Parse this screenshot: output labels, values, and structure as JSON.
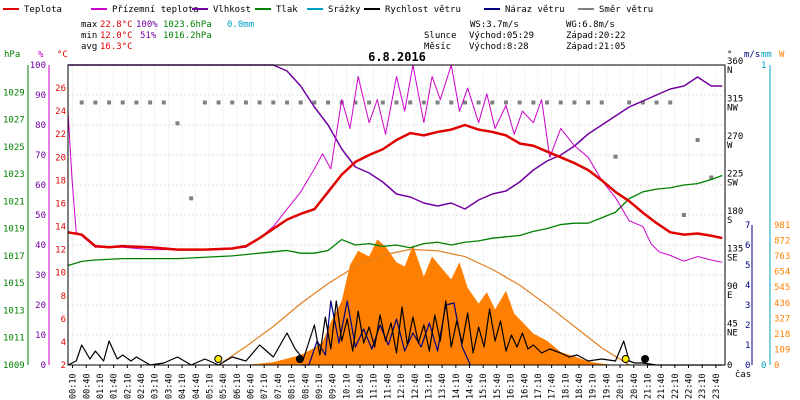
{
  "colors": {
    "temperature": "#e00000",
    "dew_point": "#cc00cc",
    "humidity": "#7000a0",
    "pressure": "#008000",
    "rain": "#00a0c0",
    "wind_speed": "#000000",
    "wind_gust": "#000080",
    "wind_dir": "#808080",
    "solar": "#ff8000",
    "solar_curve": "#e08020",
    "sun_marker": "#ffee00"
  },
  "legend": [
    {
      "key": "temperature",
      "label": "Teplota"
    },
    {
      "key": "dew_point",
      "label": "Přízemní teplota"
    },
    {
      "key": "humidity",
      "label": "Vlhkost"
    },
    {
      "key": "pressure",
      "label": "Tlak"
    },
    {
      "key": "rain",
      "label": "Srážky"
    },
    {
      "key": "wind_speed",
      "label": "Rychlost větru"
    },
    {
      "key": "wind_gust",
      "label": "Náraz větru"
    },
    {
      "key": "wind_dir",
      "label": "Směr větru"
    }
  ],
  "stats": {
    "max_label": "max",
    "max_temp": "22.8°C",
    "max_hum": "100%",
    "max_press": "1023.6hPa",
    "rain_total": "0.0mm",
    "min_label": "min",
    "min_temp": "12.0°C",
    "min_hum": "51%",
    "min_press": "1016.2hPa",
    "avg_label": "avg",
    "avg_temp": "16.3°C"
  },
  "wind_info": {
    "ws": "WS:3.7m/s",
    "wg": "WG:6.8m/s",
    "sun_label": "Slunce",
    "sunrise": "Východ:05:29",
    "sunset": "Západ:20:22",
    "moon_label": "Měsíc",
    "moonrise": "Východ:8:28",
    "moonset": "Západ:21:05"
  },
  "axis_headers": {
    "hpa": "hPa",
    "percent": "%",
    "celsius": "°C",
    "degree": "°",
    "ms": "m/s",
    "mm": "mm",
    "watt": "W"
  },
  "chart_data": {
    "type": "line",
    "title": "6.8.2016",
    "xlabel": "čas",
    "x_ticks": [
      "00:10",
      "00:40",
      "01:10",
      "01:40",
      "02:10",
      "02:40",
      "03:10",
      "03:40",
      "04:10",
      "04:40",
      "05:10",
      "05:40",
      "06:10",
      "06:40",
      "07:10",
      "07:40",
      "08:10",
      "08:40",
      "09:10",
      "09:40",
      "10:10",
      "10:40",
      "11:10",
      "11:40",
      "12:10",
      "12:40",
      "13:10",
      "13:40",
      "14:10",
      "14:40",
      "15:10",
      "15:40",
      "16:10",
      "16:40",
      "17:10",
      "17:40",
      "18:10",
      "18:40",
      "19:10",
      "19:40",
      "20:10",
      "20:40",
      "21:10",
      "21:40",
      "22:10",
      "22:40",
      "23:10",
      "23:40"
    ],
    "axes": {
      "pressure_hpa": {
        "range": [
          1009,
          1031
        ],
        "ticks": [
          1009,
          1011,
          1013,
          1015,
          1017,
          1019,
          1021,
          1023,
          1025,
          1027,
          1029
        ]
      },
      "humidity_percent": {
        "range": [
          0,
          100
        ],
        "ticks": [
          0,
          10,
          20,
          30,
          40,
          50,
          60,
          70,
          80,
          90,
          100
        ]
      },
      "temperature_c": {
        "range": [
          2,
          28
        ],
        "ticks": [
          2,
          4,
          6,
          8,
          10,
          12,
          14,
          16,
          18,
          20,
          22,
          24,
          26
        ]
      },
      "wind_dir_deg": {
        "ticks": [
          "0",
          "45 NE",
          "90 E",
          "135 SE",
          "180 S",
          "225 SW",
          "270 W",
          "315 NW",
          "360 N"
        ]
      },
      "wind_ms": {
        "range": [
          0,
          7
        ],
        "ticks": [
          0,
          1,
          2,
          3,
          4,
          5,
          6,
          7
        ]
      },
      "rain_mm": {
        "range": [
          0,
          1
        ],
        "ticks": [
          0,
          1
        ]
      },
      "solar_w": {
        "range": [
          0,
          981
        ],
        "ticks": [
          0,
          109,
          218,
          327,
          436,
          545,
          654,
          763,
          872,
          981
        ]
      }
    },
    "series": [
      {
        "name": "Teplota",
        "axis": "temperature_c",
        "x": [
          0,
          0.5,
          1,
          1.5,
          2,
          3,
          4,
          5,
          6,
          6.5,
          7,
          7.5,
          8,
          8.5,
          9,
          9.5,
          10,
          10.5,
          11,
          11.5,
          12,
          12.5,
          13,
          13.5,
          14,
          14.5,
          15,
          15.5,
          16,
          16.5,
          17,
          17.5,
          18,
          18.5,
          19,
          19.5,
          20,
          20.5,
          21,
          21.5,
          22,
          22.5,
          23,
          23.5,
          23.9
        ],
        "y": [
          13.5,
          13.3,
          12.3,
          12.2,
          12.3,
          12.2,
          12.0,
          12.0,
          12.1,
          12.3,
          13.0,
          13.8,
          14.6,
          15.1,
          15.5,
          17.0,
          18.5,
          19.6,
          20.2,
          20.7,
          21.5,
          22.1,
          21.9,
          22.2,
          22.4,
          22.8,
          22.4,
          22.2,
          21.9,
          21.2,
          21.0,
          20.5,
          20.0,
          19.5,
          18.9,
          18.0,
          17.0,
          16.2,
          15.2,
          14.3,
          13.5,
          13.3,
          13.4,
          13.2,
          13.0
        ]
      },
      {
        "name": "Přízemní teplota",
        "axis": "temperature_c",
        "x": [
          0,
          0.15,
          0.3,
          0.5,
          1,
          2,
          3,
          4,
          5,
          6,
          6.5,
          7,
          7.5,
          8,
          8.5,
          9,
          9.3,
          9.6,
          10,
          10.3,
          10.6,
          11,
          11.3,
          11.6,
          12,
          12.3,
          12.6,
          13,
          13.3,
          13.6,
          14,
          14.3,
          14.6,
          15,
          15.3,
          15.6,
          16,
          16.3,
          16.6,
          17,
          17.3,
          17.6,
          18,
          18.5,
          19,
          19.5,
          20,
          20.5,
          21,
          21.3,
          21.6,
          22,
          22.5,
          23,
          23.5,
          23.9
        ],
        "y": [
          24,
          18,
          13.5,
          13.2,
          12.2,
          12.2,
          12.0,
          12.0,
          12.0,
          12.1,
          12.2,
          13.0,
          14.0,
          15.5,
          17.0,
          19.0,
          20.3,
          19.0,
          25.0,
          22.5,
          27.0,
          23.0,
          25.0,
          22.0,
          27.0,
          24.0,
          28.0,
          23.0,
          27.0,
          25.0,
          28.0,
          24.0,
          26.0,
          23.0,
          25.5,
          22.5,
          24.5,
          22.0,
          24.0,
          23.0,
          25.0,
          20.0,
          22.5,
          21.0,
          20.0,
          18.0,
          16.5,
          14.5,
          14.0,
          12.5,
          11.8,
          11.5,
          11.0,
          11.4,
          11.1,
          10.9
        ]
      },
      {
        "name": "Vlhkost",
        "axis": "humidity_percent",
        "x": [
          0,
          1,
          2,
          3,
          4,
          5,
          6,
          7,
          7.5,
          8,
          8.5,
          9,
          9.5,
          10,
          10.5,
          11,
          11.5,
          12,
          12.5,
          13,
          13.5,
          14,
          14.5,
          15,
          15.5,
          16,
          16.5,
          17,
          17.5,
          18,
          18.5,
          19,
          19.5,
          20,
          20.5,
          21,
          21.5,
          22,
          22.5,
          23,
          23.5,
          23.9
        ],
        "y": [
          100,
          100,
          100,
          100,
          100,
          100,
          100,
          100,
          100,
          98,
          93,
          86,
          80,
          72,
          66,
          64,
          61,
          57,
          56,
          54,
          53,
          54,
          52,
          55,
          57,
          58,
          61,
          65,
          68,
          70,
          73,
          77,
          80,
          83,
          86,
          88,
          90,
          92,
          93,
          96,
          93,
          93
        ]
      },
      {
        "name": "Tlak",
        "axis": "pressure_hpa",
        "x": [
          0,
          0.5,
          1,
          2,
          3,
          4,
          5,
          6,
          7,
          8,
          8.5,
          9,
          9.5,
          10,
          10.5,
          11,
          11.5,
          12,
          12.5,
          13,
          13.5,
          14,
          14.5,
          15,
          15.5,
          16,
          16.5,
          17,
          17.5,
          18,
          18.5,
          19,
          19.5,
          20,
          20.5,
          21,
          21.5,
          22,
          22.5,
          23,
          23.5,
          23.9
        ],
        "y": [
          1016.3,
          1016.6,
          1016.7,
          1016.8,
          1016.8,
          1016.8,
          1016.9,
          1017.0,
          1017.2,
          1017.4,
          1017.2,
          1017.2,
          1017.4,
          1018.2,
          1017.8,
          1017.9,
          1017.7,
          1017.8,
          1017.6,
          1017.9,
          1018.0,
          1017.8,
          1018.0,
          1018.1,
          1018.3,
          1018.4,
          1018.5,
          1018.8,
          1019.0,
          1019.3,
          1019.4,
          1019.4,
          1019.8,
          1020.2,
          1021.2,
          1021.7,
          1021.9,
          1022.0,
          1022.2,
          1022.3,
          1022.6,
          1022.9
        ]
      },
      {
        "name": "Rychlost větru",
        "axis": "wind_ms",
        "x": [
          0,
          0.3,
          0.5,
          0.8,
          1,
          1.3,
          1.5,
          1.8,
          2,
          2.3,
          2.5,
          3,
          3.5,
          4,
          4.5,
          5,
          5.5,
          6,
          6.5,
          7,
          7.5,
          8,
          8.3,
          8.6,
          9,
          9.2,
          9.4,
          9.6,
          9.8,
          10,
          10.2,
          10.4,
          10.6,
          10.8,
          11,
          11.2,
          11.4,
          11.6,
          11.8,
          12,
          12.2,
          12.4,
          12.6,
          12.8,
          13,
          13.2,
          13.4,
          13.6,
          13.8,
          14,
          14.2,
          14.4,
          14.6,
          14.8,
          15,
          15.2,
          15.4,
          15.6,
          15.8,
          16,
          16.2,
          16.4,
          16.6,
          16.8,
          17,
          17.3,
          17.6,
          18,
          18.3,
          18.6,
          19,
          19.5,
          20,
          20.3,
          20.5,
          20.7,
          21,
          21.5,
          22,
          22.5,
          23,
          23.5,
          23.9
        ],
        "y": [
          0,
          0.2,
          1.0,
          0.3,
          0.7,
          0.2,
          1.2,
          0.3,
          0.5,
          0.2,
          0.4,
          0,
          0.1,
          0.4,
          0,
          0.3,
          0,
          0.4,
          0.2,
          1.0,
          0.4,
          1.6,
          0.8,
          0.3,
          2.0,
          0.5,
          2.4,
          0.8,
          3.2,
          1.2,
          2.3,
          0.7,
          2.7,
          1.1,
          1.9,
          0.9,
          2.5,
          1.2,
          2.1,
          0.6,
          2.9,
          1.0,
          2.4,
          1.1,
          2.0,
          0.7,
          2.5,
          1.2,
          3.2,
          0.9,
          2.2,
          1.1,
          2.6,
          0.6,
          1.9,
          0.9,
          2.8,
          1.2,
          2.2,
          0.7,
          1.5,
          0.9,
          1.6,
          0.8,
          1.0,
          0.6,
          0.8,
          0.6,
          0.4,
          0.5,
          0.2,
          0.3,
          0.2,
          1.2,
          0.2,
          0.1,
          0.1,
          0,
          0,
          0,
          0,
          0,
          0
        ]
      },
      {
        "name": "Náraz větru",
        "axis": "wind_ms",
        "x": [
          8.5,
          8.8,
          9.1,
          9.4,
          9.6,
          9.9,
          10.2,
          10.5,
          10.8,
          11.1,
          11.4,
          11.7,
          12,
          12.3,
          12.6,
          12.9,
          13.2,
          13.5,
          13.8,
          14.1,
          14.4,
          14.7
        ],
        "y": [
          0,
          0,
          1.2,
          0.5,
          3.2,
          1.1,
          3.2,
          0.9,
          1.8,
          0.8,
          2.0,
          1.0,
          2.3,
          0.7,
          1.6,
          0.9,
          2.1,
          0.7,
          3.0,
          3.1,
          0.9,
          0
        ]
      },
      {
        "name": "Solar",
        "axis": "solar_w",
        "x": [
          5.8,
          6.5,
          7.0,
          7.5,
          8.0,
          8.5,
          9.0,
          9.3,
          9.6,
          10.0,
          10.3,
          10.6,
          11.0,
          11.3,
          11.6,
          12.0,
          12.3,
          12.6,
          13.0,
          13.3,
          13.6,
          14.0,
          14.3,
          14.6,
          15.0,
          15.3,
          15.6,
          16.0,
          16.3,
          16.6,
          17.0,
          17.5,
          18.0,
          18.5,
          19.0,
          19.5,
          20.0
        ],
        "y": [
          0,
          0,
          10,
          20,
          45,
          70,
          120,
          160,
          300,
          450,
          700,
          800,
          760,
          880,
          830,
          720,
          690,
          840,
          620,
          760,
          690,
          600,
          720,
          540,
          430,
          510,
          390,
          520,
          360,
          300,
          220,
          170,
          90,
          60,
          25,
          10,
          0
        ]
      },
      {
        "name": "Clear-sky radiation",
        "axis": "solar_w",
        "x": [
          5.5,
          6.5,
          7.5,
          8.5,
          9.5,
          10.5,
          11.5,
          12.5,
          13.5,
          14.5,
          15.5,
          16.5,
          17.5,
          18.5,
          19.5,
          20.5
        ],
        "y": [
          0,
          130,
          270,
          430,
          570,
          690,
          770,
          810,
          800,
          760,
          670,
          560,
          420,
          270,
          120,
          0
        ]
      },
      {
        "name": "Směr větru",
        "axis": "wind_dir_deg",
        "x": [
          0.5,
          1.0,
          1.5,
          2.0,
          2.5,
          3.0,
          3.5,
          4.0,
          4.5,
          5.0,
          5.5,
          6.0,
          6.5,
          7.0,
          7.5,
          8.0,
          8.5,
          9.0,
          9.5,
          10.0,
          10.5,
          11.0,
          11.5,
          12.0,
          12.5,
          13.0,
          13.5,
          14.0,
          14.5,
          15.0,
          15.5,
          16.0,
          16.5,
          17.0,
          17.5,
          18.0,
          18.5,
          19.0,
          19.5,
          20.0,
          20.5,
          21.0,
          21.5,
          22.0,
          22.5,
          23.0,
          23.5
        ],
        "y": [
          315,
          315,
          315,
          315,
          315,
          315,
          315,
          290,
          200,
          315,
          315,
          315,
          315,
          315,
          315,
          315,
          315,
          315,
          315,
          315,
          315,
          315,
          315,
          315,
          315,
          315,
          315,
          315,
          315,
          315,
          315,
          315,
          315,
          315,
          315,
          315,
          315,
          315,
          315,
          250,
          315,
          315,
          315,
          315,
          180,
          270,
          225
        ]
      }
    ],
    "sun_markers": [
      {
        "type": "sunrise",
        "x": 5.49
      },
      {
        "type": "sunset",
        "x": 20.37
      }
    ],
    "moon_markers": [
      {
        "type": "moonrise",
        "x": 8.47
      },
      {
        "type": "moonset",
        "x": 21.08
      }
    ]
  }
}
